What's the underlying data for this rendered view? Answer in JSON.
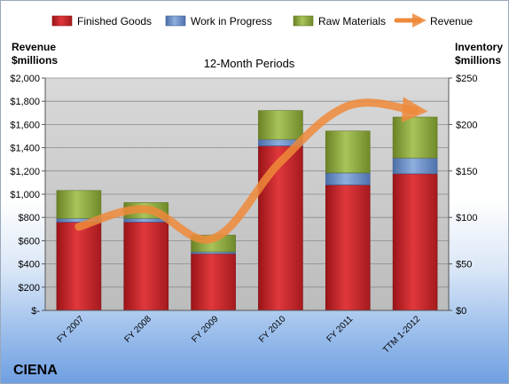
{
  "chart_data": {
    "type": "bar",
    "stacked": true,
    "title": "12-Month Periods",
    "company": "CIENA",
    "categories": [
      "FY 2007",
      "FY 2008",
      "FY 2009",
      "FY 2010",
      "FY 2011",
      "TTM 1-2012"
    ],
    "left_axis": {
      "title_line1": "Revenue",
      "title_line2": "$millions",
      "range": [
        0,
        2000
      ],
      "ticks": [
        0,
        200,
        400,
        600,
        800,
        1000,
        1200,
        1400,
        1600,
        1800,
        2000
      ],
      "tick_labels": [
        "$-",
        "$200",
        "$400",
        "$600",
        "$800",
        "$1,000",
        "$1,200",
        "$1,400",
        "$1,600",
        "$1,800",
        "$2,000"
      ]
    },
    "right_axis": {
      "title_line1": "Inventory",
      "title_line2": "$millions",
      "range": [
        0,
        250
      ],
      "ticks": [
        0,
        50,
        100,
        150,
        200,
        250
      ],
      "tick_labels": [
        "$0",
        "$50",
        "$100",
        "$150",
        "$200",
        "$250"
      ]
    },
    "series": [
      {
        "name": "Finished Goods",
        "axis": "right",
        "color": "#c8262b",
        "values": [
          95,
          95,
          61,
          177,
          135,
          147
        ]
      },
      {
        "name": "Work in Progress",
        "axis": "right",
        "color": "#6d8fc7",
        "values": [
          4,
          4,
          2,
          7,
          13,
          17
        ]
      },
      {
        "name": "Raw Materials",
        "axis": "right",
        "color": "#8fa83e",
        "values": [
          30,
          17,
          18,
          31,
          45,
          44
        ]
      },
      {
        "name": "Revenue",
        "axis": "left",
        "color": "#ee8a3a",
        "type": "line",
        "values": [
          720,
          870,
          620,
          1280,
          1760,
          1720
        ]
      }
    ],
    "grid": true,
    "legend": "top"
  }
}
